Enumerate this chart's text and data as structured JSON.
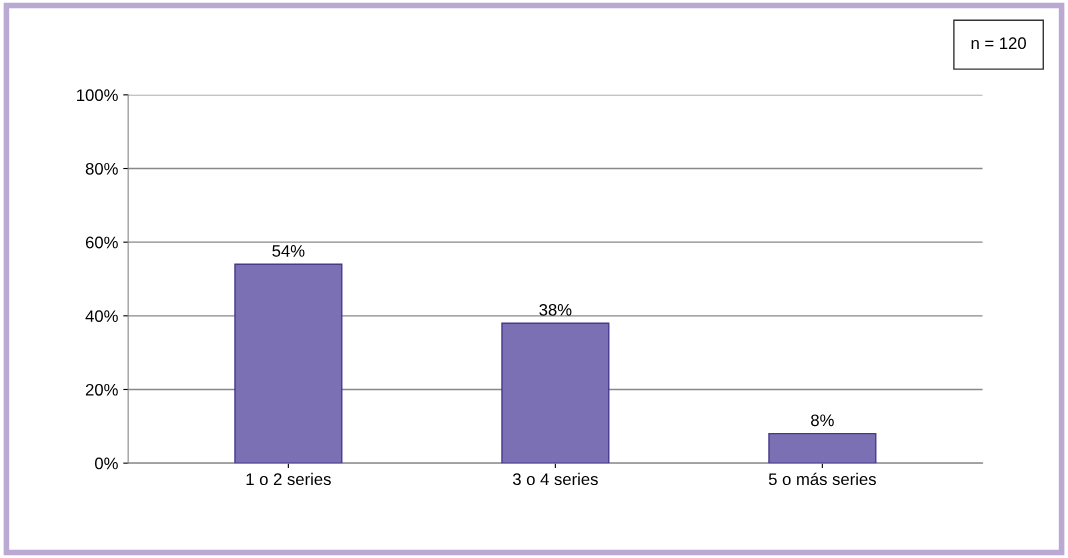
{
  "chart_data": {
    "type": "bar",
    "categories": [
      "1 o 2 series",
      "3 o 4 series",
      "5 o más series"
    ],
    "values": [
      54,
      38,
      8
    ],
    "color": "#7b70b4",
    "value_labels": [
      "54%",
      "38%",
      "8%"
    ],
    "ylim": [
      0,
      100
    ],
    "yticks": [
      {
        "value": 0,
        "label": "0%"
      },
      {
        "value": 20,
        "label": "20%"
      },
      {
        "value": 40,
        "label": "40%"
      },
      {
        "value": 60,
        "label": "60%"
      },
      {
        "value": 80,
        "label": "80%"
      },
      {
        "value": 100,
        "label": "100%"
      }
    ],
    "grid": "y",
    "annotations": [
      "n = 120"
    ]
  }
}
